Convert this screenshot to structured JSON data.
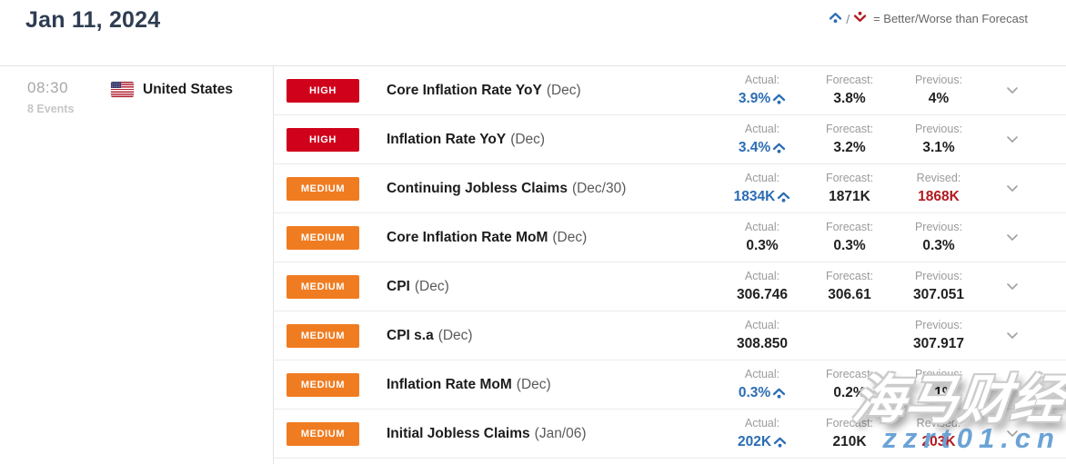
{
  "header": {
    "title": "Jan 11, 2024",
    "legend": {
      "separator": "/",
      "text": "= Better/Worse than Forecast"
    }
  },
  "sidebar": {
    "time": "08:30",
    "events_count": "8 Events",
    "country": "United States"
  },
  "colors": {
    "importance": {
      "HIGH": "#d0021b",
      "MEDIUM": "#f07c22"
    },
    "value_default": "#212121",
    "value_better": "#2a6db4",
    "value_revised": "#b2191f",
    "worse_icon": "#b2191f",
    "title": "#2e3d50"
  },
  "events": [
    {
      "importance": "HIGH",
      "name": "Core Inflation Rate YoY",
      "period": "(Dec)",
      "columns": [
        {
          "label": "Actual:",
          "value": "3.9%",
          "style": "better",
          "icon": "better-icon"
        },
        {
          "label": "Forecast:",
          "value": "3.8%"
        },
        {
          "label": "Previous:",
          "value": "4%"
        }
      ]
    },
    {
      "importance": "HIGH",
      "name": "Inflation Rate YoY",
      "period": "(Dec)",
      "columns": [
        {
          "label": "Actual:",
          "value": "3.4%",
          "style": "better",
          "icon": "better-icon"
        },
        {
          "label": "Forecast:",
          "value": "3.2%"
        },
        {
          "label": "Previous:",
          "value": "3.1%"
        }
      ]
    },
    {
      "importance": "MEDIUM",
      "name": "Continuing Jobless Claims",
      "period": "(Dec/30)",
      "columns": [
        {
          "label": "Actual:",
          "value": "1834K",
          "style": "better",
          "icon": "better-icon"
        },
        {
          "label": "Forecast:",
          "value": "1871K"
        },
        {
          "label": "Revised:",
          "value": "1868K",
          "style": "revised"
        }
      ]
    },
    {
      "importance": "MEDIUM",
      "name": "Core Inflation Rate MoM",
      "period": "(Dec)",
      "columns": [
        {
          "label": "Actual:",
          "value": "0.3%"
        },
        {
          "label": "Forecast:",
          "value": "0.3%"
        },
        {
          "label": "Previous:",
          "value": "0.3%"
        }
      ]
    },
    {
      "importance": "MEDIUM",
      "name": "CPI",
      "period": "(Dec)",
      "columns": [
        {
          "label": "Actual:",
          "value": "306.746"
        },
        {
          "label": "Forecast:",
          "value": "306.61"
        },
        {
          "label": "Previous:",
          "value": "307.051"
        }
      ]
    },
    {
      "importance": "MEDIUM",
      "name": "CPI s.a",
      "period": "(Dec)",
      "columns": [
        {
          "label": "Actual:",
          "value": "308.850"
        },
        {
          "label": "",
          "value": ""
        },
        {
          "label": "Previous:",
          "value": "307.917"
        }
      ]
    },
    {
      "importance": "MEDIUM",
      "name": "Inflation Rate MoM",
      "period": "(Dec)",
      "columns": [
        {
          "label": "Actual:",
          "value": "0.3%",
          "style": "better",
          "icon": "better-icon"
        },
        {
          "label": "Forecast:",
          "value": "0.2%"
        },
        {
          "label": "Previous:",
          "value": "0.1%"
        }
      ]
    },
    {
      "importance": "MEDIUM",
      "name": "Initial Jobless Claims",
      "period": "(Jan/06)",
      "columns": [
        {
          "label": "Actual:",
          "value": "202K",
          "style": "better",
          "icon": "better-icon"
        },
        {
          "label": "Forecast:",
          "value": "210K"
        },
        {
          "label": "Revised:",
          "value": "203K",
          "style": "revised"
        }
      ]
    }
  ],
  "watermark": {
    "line1": "海马财经",
    "line2": "zzrt01.cn"
  }
}
